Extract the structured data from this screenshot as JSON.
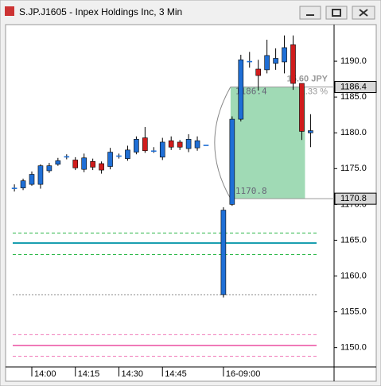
{
  "window": {
    "title": "S.JP.J1605 - Inpex Holdings Inc, 3 Min"
  },
  "chart_data": {
    "type": "candlestick",
    "categories": [
      null,
      null,
      "14:00",
      null,
      null,
      null,
      null,
      "14:15",
      null,
      null,
      null,
      null,
      "14:30",
      null,
      null,
      null,
      null,
      "14:45",
      null,
      null,
      null,
      null,
      null,
      null,
      "16-09:00",
      null,
      null,
      null,
      null,
      null,
      null,
      null,
      null,
      null,
      null
    ],
    "open": [
      1172.3,
      1172.3,
      1172.8,
      1172.8,
      1174.7,
      1175.6,
      1176.7,
      1176.2,
      1174.9,
      1176.0,
      1175.7,
      1175.3,
      1176.8,
      1176.4,
      1177.3,
      1179.3,
      1177.5,
      1176.6,
      1178.9,
      1178.7,
      1177.8,
      1177.9,
      1178.3,
      null,
      1157.4,
      1170.0,
      1181.9,
      1190.0,
      1188.9,
      1188.8,
      1189.7,
      1189.9,
      1192.3,
      1186.9,
      1180.0
    ],
    "high": [
      1172.8,
      1173.6,
      1174.6,
      1175.6,
      1175.8,
      1176.5,
      1177.0,
      1176.6,
      1177.1,
      1176.4,
      1176.0,
      1177.9,
      1177.1,
      1178.2,
      1179.5,
      1180.8,
      1178.0,
      1179.3,
      1179.5,
      1179.0,
      1179.8,
      1179.5,
      1178.3,
      null,
      1169.6,
      1182.3,
      1190.9,
      1191.3,
      1190.2,
      1193.0,
      1191.8,
      1193.6,
      1193.6,
      1186.9,
      1182.6
    ],
    "low": [
      1171.8,
      1172.0,
      1172.6,
      1172.2,
      1174.4,
      1175.4,
      1176.3,
      1174.8,
      1174.5,
      1174.8,
      1174.3,
      1174.9,
      1176.4,
      1176.1,
      1177.0,
      1177.2,
      1177.2,
      1176.2,
      1177.6,
      1177.6,
      1177.3,
      1177.5,
      1178.3,
      null,
      1157.0,
      1169.8,
      1181.6,
      1189.1,
      1185.9,
      1188.3,
      1188.8,
      1188.3,
      1186.0,
      1179.0,
      1178.0
    ],
    "close": [
      1172.3,
      1173.3,
      1174.2,
      1175.4,
      1175.4,
      1176.1,
      1176.7,
      1175.1,
      1176.5,
      1175.2,
      1174.8,
      1177.3,
      1176.8,
      1177.6,
      1179.1,
      1177.5,
      1177.5,
      1178.7,
      1178.0,
      1178.0,
      1179.1,
      1178.9,
      1178.3,
      null,
      1169.2,
      1181.9,
      1190.2,
      1190.0,
      1188.0,
      1190.8,
      1190.4,
      1191.9,
      1186.9,
      1180.2,
      1180.3
    ],
    "up_color": "#1f6fd6",
    "down_color": "#d01c1c",
    "ylim": [
      1147.3,
      1195
    ],
    "yticks": [
      {
        "value": 1150,
        "label": "1150.0"
      },
      {
        "value": 1155,
        "label": "1155.0"
      },
      {
        "value": 1160,
        "label": "1160.0"
      },
      {
        "value": 1165,
        "label": "1165.0"
      },
      {
        "value": 1170,
        "label": "1170.0"
      },
      {
        "value": 1175,
        "label": "1175.0"
      },
      {
        "value": 1180,
        "label": "1180.0"
      },
      {
        "value": 1185,
        "label": "1185.0"
      },
      {
        "value": 1190,
        "label": "1190.0"
      }
    ],
    "levels": [
      {
        "value": 1166,
        "color": "#2eb84a",
        "style": "dashed"
      },
      {
        "value": 1164.6,
        "color": "#1a9fb0",
        "style": "solid"
      },
      {
        "value": 1163,
        "color": "#2eb84a",
        "style": "dashed"
      },
      {
        "value": 1157.4,
        "color": "#888888",
        "style": "dotted"
      },
      {
        "value": 1151.8,
        "color": "#f07ab8",
        "style": "dashed"
      },
      {
        "value": 1150.3,
        "color": "#f07ab8",
        "style": "solid"
      },
      {
        "value": 1148.8,
        "color": "#f07ab8",
        "style": "dashed"
      }
    ],
    "measure": {
      "from": 1170.8,
      "to": 1186.4,
      "color": "#8fd3a8",
      "change_label": "15.60 JPY",
      "pct_label": "1.33 %"
    }
  }
}
